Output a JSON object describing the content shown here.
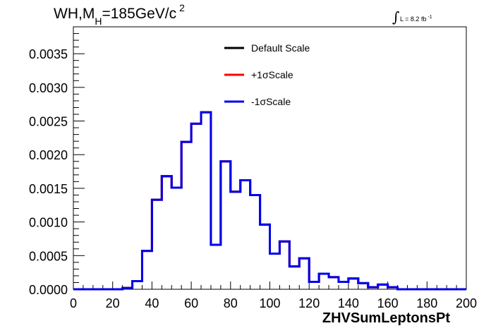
{
  "title": {
    "prefix": "WH,M",
    "sub": "H",
    "suffix": "=185GeV/c",
    "sup": "2"
  },
  "lumi": {
    "symbol": "∫",
    "label": "L = 8.2 fb",
    "sup": "-1"
  },
  "chart_data": {
    "type": "line",
    "style": "step-histogram",
    "xlabel": "ZHVSumLeptonsPt",
    "ylabel": "",
    "xlim": [
      0,
      200
    ],
    "ylim": [
      0,
      0.0039
    ],
    "bin_width": 5,
    "xticks": [
      0,
      20,
      40,
      60,
      80,
      100,
      120,
      140,
      160,
      180,
      200
    ],
    "yticks": [
      0.0,
      0.0005,
      0.001,
      0.0015,
      0.002,
      0.0025,
      0.003,
      0.0035
    ],
    "ytick_labels": [
      "0.0000",
      "0.0005",
      "0.0010",
      "0.0015",
      "0.0020",
      "0.0025",
      "0.0030",
      "0.0035"
    ],
    "legend_position": "top-center",
    "bin_edges": [
      0,
      5,
      10,
      15,
      20,
      25,
      30,
      35,
      40,
      45,
      50,
      55,
      60,
      65,
      70,
      75,
      80,
      85,
      90,
      95,
      100,
      105,
      110,
      115,
      120,
      125,
      130,
      135,
      140,
      145,
      150,
      155,
      160,
      165,
      170,
      175,
      180,
      185,
      190,
      195,
      200
    ],
    "series": [
      {
        "name": "Default Scale",
        "color": "#000000",
        "values": [
          0,
          0,
          0,
          0,
          0,
          2e-05,
          0.00012,
          0.00057,
          0.00133,
          0.00168,
          0.00151,
          0.00219,
          0.00246,
          0.00263,
          0.00066,
          0.0019,
          0.00145,
          0.00162,
          0.0014,
          0.00096,
          0.00053,
          0.00071,
          0.00034,
          0.00046,
          0.00011,
          0.00023,
          0.00018,
          0.00011,
          0.00016,
          9e-05,
          3e-05,
          7e-05,
          3e-05,
          0,
          0,
          0,
          0,
          0,
          0,
          0
        ]
      },
      {
        "name": "+1σScale",
        "color": "#ff0000",
        "values": [
          0,
          0,
          0,
          0,
          0,
          2e-05,
          0.00012,
          0.00057,
          0.00133,
          0.00168,
          0.00151,
          0.00219,
          0.00246,
          0.00263,
          0.00066,
          0.0019,
          0.00145,
          0.00162,
          0.0014,
          0.00096,
          0.00053,
          0.00071,
          0.00034,
          0.00046,
          0.00011,
          0.00023,
          0.00018,
          0.00011,
          0.00016,
          9e-05,
          3e-05,
          7e-05,
          3e-05,
          0,
          0,
          0,
          0,
          0,
          0,
          0
        ]
      },
      {
        "name": "-1σScale",
        "color": "#0000ee",
        "values": [
          0,
          0,
          0,
          0,
          0,
          2e-05,
          0.00012,
          0.00057,
          0.00133,
          0.00168,
          0.00151,
          0.00219,
          0.00246,
          0.00263,
          0.00066,
          0.0019,
          0.00145,
          0.00162,
          0.0014,
          0.00096,
          0.00053,
          0.00071,
          0.00034,
          0.00046,
          0.00011,
          0.00023,
          0.00018,
          0.00011,
          0.00016,
          9e-05,
          3e-05,
          7e-05,
          3e-05,
          0,
          0,
          0,
          0,
          0,
          0,
          0
        ]
      }
    ]
  }
}
